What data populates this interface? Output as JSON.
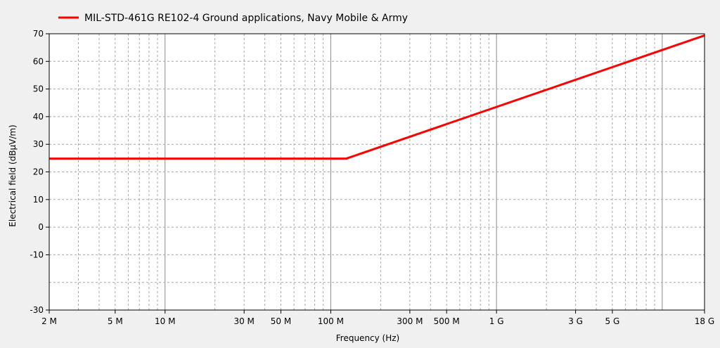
{
  "chart_data": {
    "type": "line",
    "xlabel": "Frequency (Hz)",
    "ylabel": "Electrical field (dBµV/m)",
    "x_scale": "log",
    "xlim": [
      2000000,
      18000000000
    ],
    "ylim": [
      -30,
      70
    ],
    "grid": true,
    "legend_position": "top-left",
    "x_ticks": [
      {
        "value": 2000000,
        "label": "2 M"
      },
      {
        "value": 5000000,
        "label": "5 M"
      },
      {
        "value": 10000000,
        "label": "10 M"
      },
      {
        "value": 30000000,
        "label": "30 M"
      },
      {
        "value": 50000000,
        "label": "50 M"
      },
      {
        "value": 100000000,
        "label": "100 M"
      },
      {
        "value": 300000000,
        "label": "300 M"
      },
      {
        "value": 500000000,
        "label": "500 M"
      },
      {
        "value": 1000000000,
        "label": "1 G"
      },
      {
        "value": 3000000000,
        "label": "3 G"
      },
      {
        "value": 5000000000,
        "label": "5 G"
      },
      {
        "value": 18000000000,
        "label": "18 G"
      }
    ],
    "y_ticks": [
      {
        "value": 70,
        "label": "70"
      },
      {
        "value": 60,
        "label": "60"
      },
      {
        "value": 50,
        "label": "50"
      },
      {
        "value": 40,
        "label": "40"
      },
      {
        "value": 30,
        "label": "30"
      },
      {
        "value": 20,
        "label": "20"
      },
      {
        "value": 10,
        "label": "10"
      },
      {
        "value": 0,
        "label": "0"
      },
      {
        "value": -10,
        "label": "-10"
      },
      {
        "value": -30,
        "label": "-30"
      }
    ],
    "series": [
      {
        "name": "MIL-STD-461G RE102-4 Ground applications, Navy Mobile & Army",
        "color": "#ff0000",
        "x": [
          2000000,
          124000000,
          18000000000
        ],
        "y": [
          24.8,
          24.8,
          69.4
        ]
      }
    ]
  }
}
